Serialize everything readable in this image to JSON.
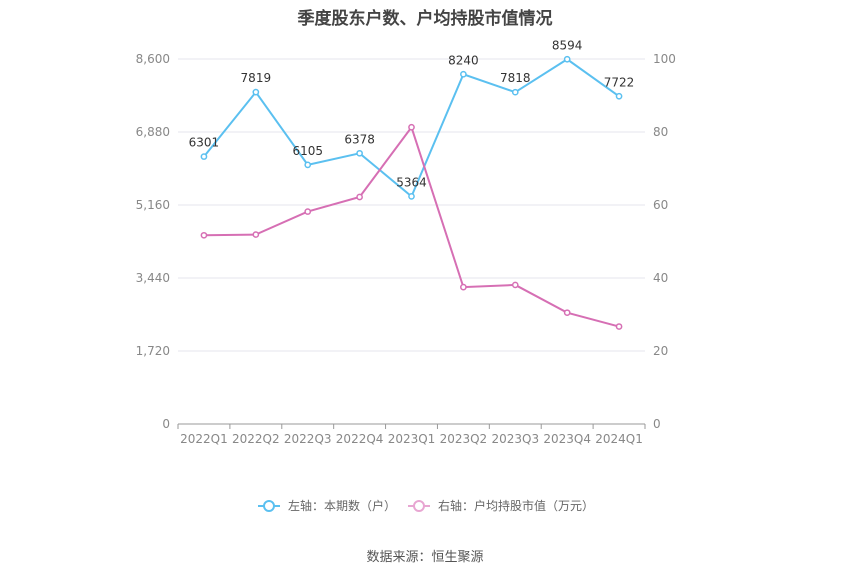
{
  "title": "季度股东户数、户均持股市值情况",
  "source": "数据来源：恒生聚源",
  "colors": {
    "left_series": "#5bc0f0",
    "right_series": "#d66fb4",
    "grid": "#e6e6ee",
    "axis": "#999999"
  },
  "chart_data": {
    "type": "line",
    "title": "季度股东户数、户均持股市值情况",
    "categories": [
      "2022Q1",
      "2022Q2",
      "2022Q3",
      "2022Q4",
      "2023Q1",
      "2023Q2",
      "2023Q3",
      "2023Q4",
      "2024Q1"
    ],
    "y_left": {
      "min": 0,
      "max": 8600,
      "ticks": [
        0,
        1720,
        3440,
        5160,
        6880,
        8600
      ],
      "tick_labels": [
        "0",
        "1,720",
        "3,440",
        "5,160",
        "6,880",
        "8,600"
      ]
    },
    "y_right": {
      "min": 0,
      "max": 100,
      "ticks": [
        0,
        20,
        40,
        60,
        80,
        100
      ],
      "tick_labels": [
        "0",
        "20",
        "40",
        "60",
        "80",
        "100"
      ]
    },
    "grid": true,
    "legend_position": "bottom",
    "series": [
      {
        "name": "左轴：本期数（户）",
        "axis": "left",
        "values": [
          6301,
          7819,
          6105,
          6378,
          5364,
          8240,
          7818,
          8594,
          7722
        ],
        "show_labels": true
      },
      {
        "name": "右轴：户均持股市值（万元）",
        "axis": "right",
        "values": [
          51.7,
          51.9,
          58.2,
          62.2,
          81.3,
          37.5,
          38.1,
          30.5,
          26.7
        ],
        "show_labels": false
      }
    ]
  }
}
